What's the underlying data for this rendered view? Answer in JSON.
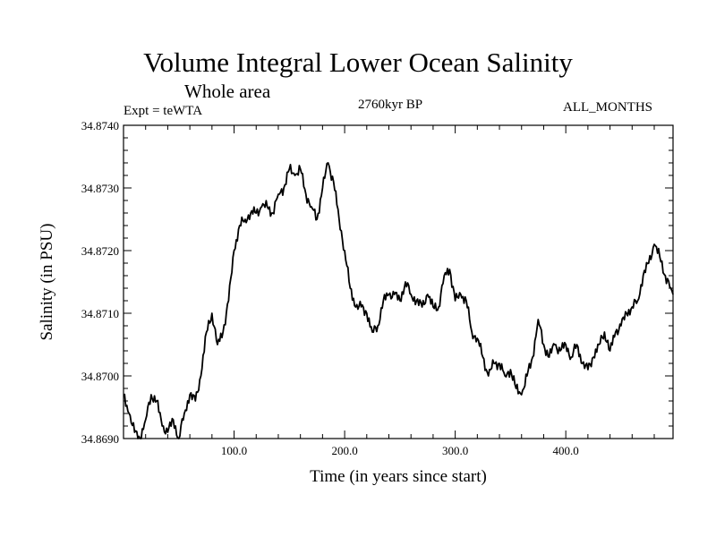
{
  "header": {
    "title": "Volume Integral Lower Ocean Salinity",
    "subtitle": "Whole area",
    "experiment": "Expt = teWTA",
    "period": "2760kyr BP",
    "months": "ALL_MONTHS"
  },
  "chart_data": {
    "type": "line",
    "title": "Volume Integral Lower Ocean Salinity",
    "xlabel": "Time (in years since start)",
    "ylabel": "Salinity (in PSU)",
    "xlim": [
      0,
      497
    ],
    "ylim": [
      34.869,
      34.874
    ],
    "xticks": [
      100,
      200,
      300,
      400
    ],
    "xtick_labels": [
      "100.0",
      "200.0",
      "300.0",
      "400.0"
    ],
    "yticks": [
      34.869,
      34.87,
      34.871,
      34.872,
      34.873,
      34.874
    ],
    "ytick_labels": [
      "34.8690",
      "34.8700",
      "34.8710",
      "34.8720",
      "34.8730",
      "34.8740"
    ],
    "series": [
      {
        "name": "Salinity",
        "x": [
          0,
          5,
          10,
          15,
          20,
          25,
          30,
          35,
          40,
          45,
          50,
          55,
          60,
          65,
          70,
          75,
          80,
          85,
          90,
          95,
          100,
          105,
          110,
          115,
          120,
          125,
          130,
          135,
          140,
          145,
          150,
          155,
          160,
          165,
          170,
          175,
          180,
          185,
          190,
          195,
          200,
          205,
          210,
          215,
          220,
          225,
          230,
          235,
          240,
          245,
          250,
          255,
          260,
          265,
          270,
          275,
          280,
          285,
          290,
          295,
          300,
          305,
          310,
          315,
          320,
          325,
          330,
          335,
          340,
          345,
          350,
          355,
          360,
          365,
          370,
          375,
          380,
          385,
          390,
          395,
          400,
          405,
          410,
          415,
          420,
          425,
          430,
          435,
          440,
          445,
          450,
          455,
          460,
          465,
          470,
          475,
          480,
          485,
          490,
          495,
          497
        ],
        "values": [
          34.8697,
          34.8694,
          34.8691,
          34.869,
          34.8693,
          34.8697,
          34.8696,
          34.8692,
          34.8691,
          34.8693,
          34.869,
          34.8694,
          34.8697,
          34.8696,
          34.87,
          34.8707,
          34.871,
          34.8705,
          34.8707,
          34.8712,
          34.872,
          34.8724,
          34.8725,
          34.8726,
          34.8726,
          34.8727,
          34.8727,
          34.8726,
          34.8729,
          34.873,
          34.8733,
          34.8732,
          34.8733,
          34.8729,
          34.8727,
          34.8725,
          34.873,
          34.8734,
          34.8731,
          34.8725,
          34.872,
          34.8714,
          34.8711,
          34.8711,
          34.871,
          34.8707,
          34.8708,
          34.8712,
          34.8713,
          34.8713,
          34.8712,
          34.8715,
          34.8713,
          34.8712,
          34.8711,
          34.8713,
          34.8711,
          34.8711,
          34.8716,
          34.8717,
          34.8712,
          34.8713,
          34.8712,
          34.8707,
          34.8706,
          34.8703,
          34.87,
          34.8702,
          34.8702,
          34.87,
          34.8701,
          34.8698,
          34.8697,
          34.87,
          34.8703,
          34.8709,
          34.8705,
          34.8703,
          34.8705,
          34.8704,
          34.8705,
          34.8703,
          34.8705,
          34.8702,
          34.8701,
          34.8703,
          34.8705,
          34.8707,
          34.8704,
          34.8707,
          34.8708,
          34.871,
          34.8711,
          34.8712,
          34.8716,
          34.8718,
          34.8721,
          34.8719,
          34.8716,
          34.8714,
          34.8713
        ]
      }
    ]
  }
}
